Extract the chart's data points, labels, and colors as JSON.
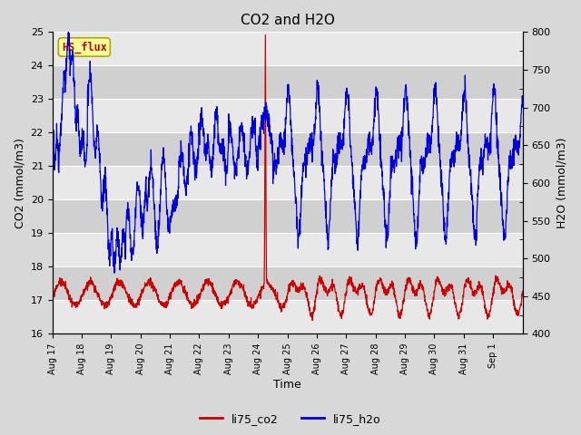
{
  "title": "CO2 and H2O",
  "xlabel": "Time",
  "ylabel_left": "CO2 (mmol/m3)",
  "ylabel_right": "H2O (mmol/m3)",
  "ylim_left": [
    16.0,
    25.0
  ],
  "ylim_right": [
    400,
    800
  ],
  "annotation_text": "HS_flux",
  "annotation_bg": "#ffff99",
  "annotation_edge": "#aaaa00",
  "annotation_text_color": "#cc0000",
  "co2_color": "#cc0000",
  "h2o_color": "#0000dd",
  "legend_co2": "li75_co2",
  "legend_h2o": "li75_h2o",
  "background_color": "#d8d8d8",
  "band_light": "#e8e8e8",
  "band_dark": "#d0d0d0",
  "grid_color": "#ffffff",
  "xticklabels": [
    "Aug 17",
    "Aug 18",
    "Aug 19",
    "Aug 20",
    "Aug 21",
    "Aug 22",
    "Aug 23",
    "Aug 24",
    "Aug 25",
    "Aug 26",
    "Aug 27",
    "Aug 28",
    "Aug 29",
    "Aug 30",
    "Aug 31",
    "Sep 1"
  ],
  "yticks_left": [
    16.0,
    17.0,
    18.0,
    19.0,
    20.0,
    21.0,
    22.0,
    23.0,
    24.0,
    25.0
  ],
  "yticks_right": [
    400,
    450,
    500,
    550,
    600,
    650,
    700,
    750,
    800
  ]
}
